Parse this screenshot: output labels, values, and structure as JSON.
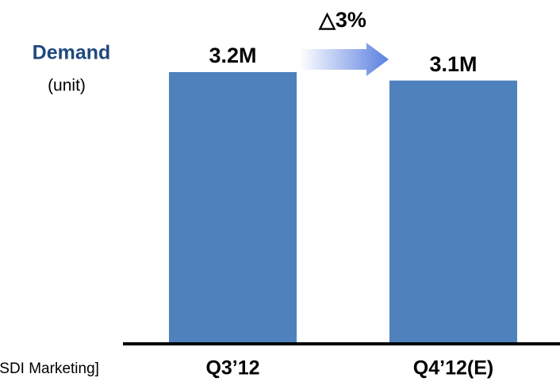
{
  "chart_data": {
    "type": "bar",
    "title": "Demand",
    "subtitle": "(unit)",
    "categories": [
      "Q3’12",
      "Q4’12(E)"
    ],
    "values": [
      3200000,
      3100000
    ],
    "value_labels": [
      "3.2M",
      "3.1M"
    ],
    "color": "#4f81bd",
    "annotation": "△3%",
    "source": "[SDI Marketing]"
  }
}
